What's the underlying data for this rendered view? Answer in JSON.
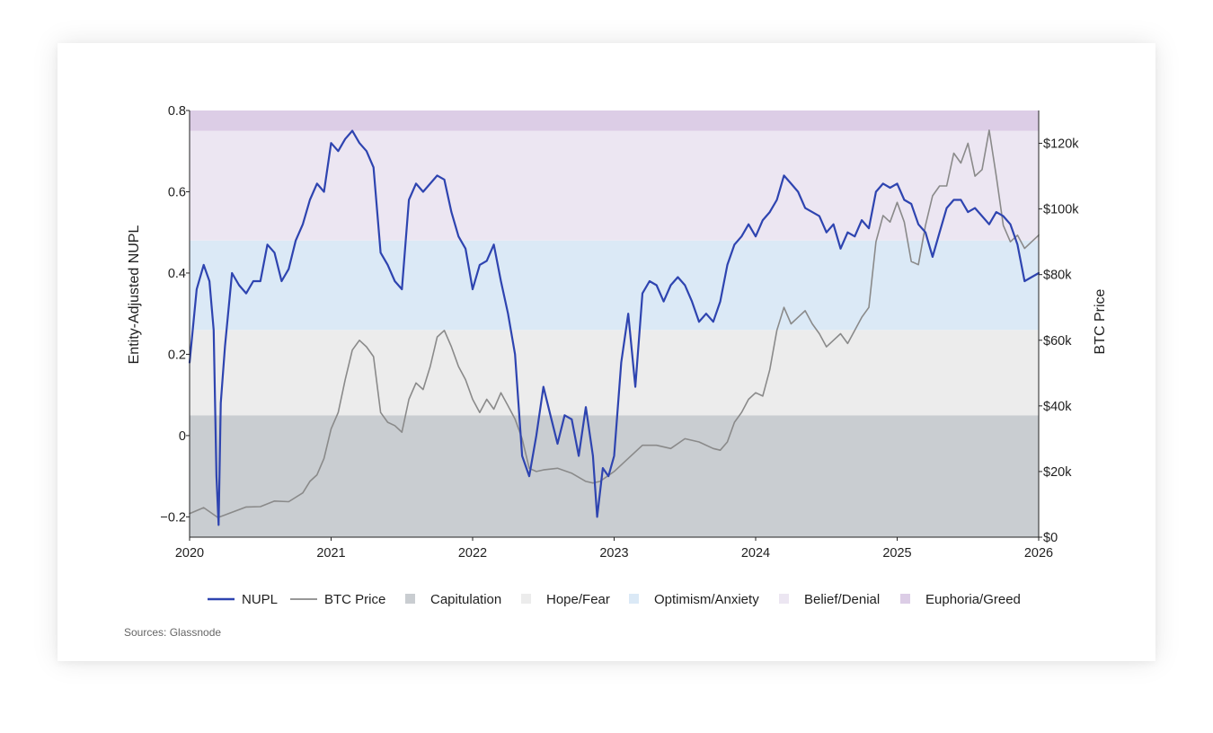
{
  "chart_data": {
    "type": "line",
    "title": "",
    "left_axis": {
      "label": "Entity-Adjusted NUPL",
      "ylim": [
        -0.25,
        0.8
      ],
      "ticks": [
        0.8,
        0.6,
        0.4,
        0.2,
        0,
        -0.2
      ],
      "tick_labels": [
        "0.8",
        "0.6",
        "0.4",
        "0.2",
        "0",
        "−0.2"
      ]
    },
    "right_axis": {
      "label": "BTC Price",
      "ylim": [
        0,
        130000
      ],
      "ticks": [
        0,
        20000,
        40000,
        60000,
        80000,
        100000,
        120000
      ],
      "tick_labels": [
        "$0",
        "$20k",
        "$40k",
        "$60k",
        "$80k",
        "$100k",
        "$120k"
      ]
    },
    "x_axis": {
      "range": [
        2020,
        2026
      ],
      "ticks": [
        2020,
        2021,
        2022,
        2023,
        2024,
        2025,
        2026
      ],
      "tick_labels": [
        "2020",
        "2021",
        "2022",
        "2023",
        "2024",
        "2025",
        "2026"
      ]
    },
    "bands": [
      {
        "name": "Capitulation",
        "from": -0.25,
        "to": 0.05,
        "color": "#c9cdd1"
      },
      {
        "name": "Hope/Fear",
        "from": 0.05,
        "to": 0.26,
        "color": "#ececec"
      },
      {
        "name": "Optimism/Anxiety",
        "from": 0.26,
        "to": 0.48,
        "color": "#dbe9f6"
      },
      {
        "name": "Belief/Denial",
        "from": 0.48,
        "to": 0.75,
        "color": "#ece6f2"
      },
      {
        "name": "Euphoria/Greed",
        "from": 0.75,
        "to": 0.8,
        "color": "#dccde6"
      }
    ],
    "series": [
      {
        "name": "NUPL",
        "axis": "left",
        "color": "#2e44b0",
        "x": [
          2020.0,
          2020.05,
          2020.1,
          2020.14,
          2020.17,
          2020.19,
          2020.205,
          2020.22,
          2020.25,
          2020.3,
          2020.35,
          2020.4,
          2020.45,
          2020.5,
          2020.55,
          2020.6,
          2020.65,
          2020.7,
          2020.75,
          2020.8,
          2020.85,
          2020.9,
          2020.95,
          2021.0,
          2021.05,
          2021.1,
          2021.15,
          2021.2,
          2021.25,
          2021.3,
          2021.35,
          2021.4,
          2021.45,
          2021.5,
          2021.55,
          2021.6,
          2021.65,
          2021.7,
          2021.75,
          2021.8,
          2021.85,
          2021.9,
          2021.95,
          2022.0,
          2022.05,
          2022.1,
          2022.15,
          2022.2,
          2022.25,
          2022.3,
          2022.35,
          2022.4,
          2022.45,
          2022.5,
          2022.55,
          2022.6,
          2022.65,
          2022.7,
          2022.75,
          2022.8,
          2022.85,
          2022.88,
          2022.92,
          2022.96,
          2023.0,
          2023.05,
          2023.1,
          2023.15,
          2023.2,
          2023.25,
          2023.3,
          2023.35,
          2023.4,
          2023.45,
          2023.5,
          2023.55,
          2023.6,
          2023.65,
          2023.7,
          2023.75,
          2023.8,
          2023.85,
          2023.9,
          2023.95,
          2024.0,
          2024.05,
          2024.1,
          2024.15,
          2024.2,
          2024.25,
          2024.3,
          2024.35,
          2024.4,
          2024.45,
          2024.5,
          2024.55,
          2024.6,
          2024.65,
          2024.7,
          2024.75,
          2024.8,
          2024.85,
          2024.9,
          2024.95,
          2025.0,
          2025.05,
          2025.1,
          2025.15,
          2025.2,
          2025.25,
          2025.3,
          2025.35,
          2025.4,
          2025.45,
          2025.5,
          2025.55,
          2025.6,
          2025.65,
          2025.7,
          2025.75,
          2025.8,
          2025.85,
          2025.9,
          2025.95,
          2026.0
        ],
        "values": [
          0.18,
          0.36,
          0.42,
          0.38,
          0.26,
          -0.1,
          -0.22,
          0.08,
          0.22,
          0.4,
          0.37,
          0.35,
          0.38,
          0.38,
          0.47,
          0.45,
          0.38,
          0.41,
          0.48,
          0.52,
          0.58,
          0.62,
          0.6,
          0.72,
          0.7,
          0.73,
          0.75,
          0.72,
          0.7,
          0.66,
          0.45,
          0.42,
          0.38,
          0.36,
          0.58,
          0.62,
          0.6,
          0.62,
          0.64,
          0.63,
          0.55,
          0.49,
          0.46,
          0.36,
          0.42,
          0.43,
          0.47,
          0.38,
          0.3,
          0.2,
          -0.05,
          -0.1,
          0.0,
          0.12,
          0.05,
          -0.02,
          0.05,
          0.04,
          -0.05,
          0.07,
          -0.05,
          -0.2,
          -0.08,
          -0.1,
          -0.05,
          0.18,
          0.3,
          0.12,
          0.35,
          0.38,
          0.37,
          0.33,
          0.37,
          0.39,
          0.37,
          0.33,
          0.28,
          0.3,
          0.28,
          0.33,
          0.42,
          0.47,
          0.49,
          0.52,
          0.49,
          0.53,
          0.55,
          0.58,
          0.64,
          0.62,
          0.6,
          0.56,
          0.55,
          0.54,
          0.5,
          0.52,
          0.46,
          0.5,
          0.49,
          0.53,
          0.51,
          0.6,
          0.62,
          0.61,
          0.62,
          0.58,
          0.57,
          0.52,
          0.5,
          0.44,
          0.5,
          0.56,
          0.58,
          0.58,
          0.55,
          0.56,
          0.54,
          0.52,
          0.55,
          0.54,
          0.52,
          0.47,
          0.38,
          0.39,
          0.4
        ]
      },
      {
        "name": "BTC Price",
        "axis": "right",
        "color": "#8a8a8a",
        "x": [
          2020.0,
          2020.1,
          2020.2,
          2020.25,
          2020.4,
          2020.5,
          2020.6,
          2020.7,
          2020.8,
          2020.85,
          2020.9,
          2020.95,
          2021.0,
          2021.05,
          2021.1,
          2021.15,
          2021.2,
          2021.25,
          2021.3,
          2021.35,
          2021.4,
          2021.45,
          2021.5,
          2021.55,
          2021.6,
          2021.65,
          2021.7,
          2021.75,
          2021.8,
          2021.85,
          2021.9,
          2021.95,
          2022.0,
          2022.05,
          2022.1,
          2022.15,
          2022.2,
          2022.25,
          2022.3,
          2022.35,
          2022.4,
          2022.45,
          2022.5,
          2022.6,
          2022.7,
          2022.8,
          2022.85,
          2022.9,
          2023.0,
          2023.1,
          2023.2,
          2023.3,
          2023.4,
          2023.5,
          2023.6,
          2023.7,
          2023.75,
          2023.8,
          2023.85,
          2023.9,
          2023.95,
          2024.0,
          2024.05,
          2024.1,
          2024.15,
          2024.2,
          2024.25,
          2024.3,
          2024.35,
          2024.4,
          2024.45,
          2024.5,
          2024.55,
          2024.6,
          2024.65,
          2024.7,
          2024.75,
          2024.8,
          2024.85,
          2024.9,
          2024.95,
          2025.0,
          2025.05,
          2025.1,
          2025.15,
          2025.2,
          2025.25,
          2025.3,
          2025.35,
          2025.4,
          2025.45,
          2025.5,
          2025.55,
          2025.6,
          2025.65,
          2025.7,
          2025.75,
          2025.8,
          2025.85,
          2025.9,
          2025.95,
          2026.0
        ],
        "values": [
          7200,
          9000,
          6000,
          6800,
          9200,
          9300,
          11000,
          10800,
          13500,
          17000,
          19000,
          24000,
          33000,
          38000,
          48000,
          57000,
          60000,
          58000,
          55000,
          38000,
          35000,
          34000,
          32000,
          42000,
          47000,
          45000,
          52000,
          61000,
          63000,
          58000,
          52000,
          48000,
          42000,
          38000,
          42000,
          39000,
          44000,
          40000,
          36000,
          30000,
          21000,
          20000,
          20500,
          21000,
          19500,
          17000,
          16500,
          17000,
          20000,
          24000,
          28000,
          28000,
          27000,
          30000,
          29000,
          27000,
          26500,
          29000,
          35000,
          38000,
          42000,
          44000,
          43000,
          51000,
          63000,
          70000,
          65000,
          67000,
          69000,
          65000,
          62000,
          58000,
          60000,
          62000,
          59000,
          63000,
          67000,
          70000,
          90000,
          98000,
          96000,
          102000,
          96000,
          84000,
          83000,
          95000,
          104000,
          107000,
          107000,
          117000,
          114000,
          120000,
          110000,
          112000,
          124000,
          110000,
          95000,
          90000,
          92000,
          88000,
          90000,
          92000
        ]
      }
    ],
    "legend": [
      {
        "label": "NUPL",
        "kind": "line",
        "color": "#2e44b0"
      },
      {
        "label": "BTC Price",
        "kind": "line",
        "color": "#8a8a8a"
      },
      {
        "label": "Capitulation",
        "kind": "swatch",
        "color": "#c9cdd1"
      },
      {
        "label": "Hope/Fear",
        "kind": "swatch",
        "color": "#ececec"
      },
      {
        "label": "Optimism/Anxiety",
        "kind": "swatch",
        "color": "#dbe9f6"
      },
      {
        "label": "Belief/Denial",
        "kind": "swatch",
        "color": "#ece6f2"
      },
      {
        "label": "Euphoria/Greed",
        "kind": "swatch",
        "color": "#dccde6"
      }
    ],
    "legend_placement": "bottom",
    "grid": false
  },
  "source_note": "Sources: Glassnode"
}
